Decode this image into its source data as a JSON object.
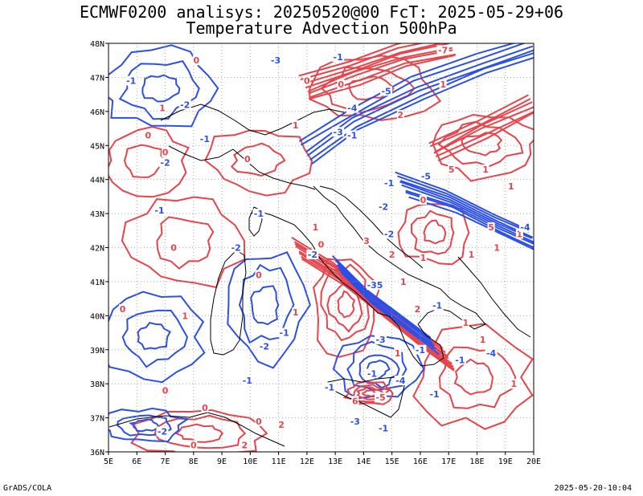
{
  "title_line1": "ECMWF0200 analisys: 20250520@00 FcT: 2025-05-29+06",
  "title_line2": "Temperature Advection 500hPa",
  "footer_left": "GrADS/COLA",
  "footer_right": "2025-05-20-10:04",
  "map": {
    "lon_labels": [
      "5E",
      "6E",
      "7E",
      "8E",
      "9E",
      "10E",
      "11E",
      "12E",
      "13E",
      "14E",
      "15E",
      "16E",
      "17E",
      "18E",
      "19E",
      "20E"
    ],
    "lat_labels": [
      "48N",
      "47N",
      "46N",
      "45N",
      "44N",
      "43N",
      "42N",
      "41N",
      "40N",
      "39N",
      "38N",
      "37N",
      "36N"
    ],
    "lon_range": [
      5,
      20
    ],
    "lat_range": [
      36,
      48
    ],
    "grid": "dotted",
    "colors": {
      "warm_advection": "#e8434a",
      "cold_advection": "#2b4fe8",
      "coastline": "#000000"
    },
    "contour_labels": [
      {
        "text": "-1",
        "lon": 5.8,
        "lat": 46.9,
        "color": "cold"
      },
      {
        "text": "0",
        "lon": 8.1,
        "lat": 47.5,
        "color": "warm"
      },
      {
        "text": "-2",
        "lon": 7.7,
        "lat": 46.2,
        "color": "cold"
      },
      {
        "text": "-3",
        "lon": 10.9,
        "lat": 47.5,
        "color": "cold"
      },
      {
        "text": "0",
        "lon": 12.0,
        "lat": 46.9,
        "color": "warm"
      },
      {
        "text": "0",
        "lon": 13.2,
        "lat": 46.8,
        "color": "warm"
      },
      {
        "text": "-1",
        "lon": 13.1,
        "lat": 47.6,
        "color": "cold"
      },
      {
        "text": "-7",
        "lon": 16.8,
        "lat": 47.8,
        "color": "warm"
      },
      {
        "text": "1",
        "lon": 16.8,
        "lat": 46.8,
        "color": "warm"
      },
      {
        "text": "-5",
        "lon": 14.8,
        "lat": 46.6,
        "color": "cold"
      },
      {
        "text": "-4",
        "lon": 13.6,
        "lat": 46.1,
        "color": "cold"
      },
      {
        "text": "-3",
        "lon": 13.1,
        "lat": 45.4,
        "color": "cold"
      },
      {
        "text": "2",
        "lon": 15.3,
        "lat": 45.9,
        "color": "warm"
      },
      {
        "text": "0",
        "lon": 6.4,
        "lat": 45.3,
        "color": "warm"
      },
      {
        "text": "0",
        "lon": 7.0,
        "lat": 44.8,
        "color": "warm"
      },
      {
        "text": "-1",
        "lon": 8.4,
        "lat": 45.2,
        "color": "cold"
      },
      {
        "text": "1",
        "lon": 6.9,
        "lat": 46.1,
        "color": "warm"
      },
      {
        "text": "-2",
        "lon": 7.0,
        "lat": 44.5,
        "color": "cold"
      },
      {
        "text": "0",
        "lon": 9.9,
        "lat": 44.6,
        "color": "warm"
      },
      {
        "text": "1",
        "lon": 11.6,
        "lat": 45.6,
        "color": "warm"
      },
      {
        "text": "-1",
        "lon": 13.6,
        "lat": 45.3,
        "color": "cold"
      },
      {
        "text": "-5",
        "lon": 16.2,
        "lat": 44.1,
        "color": "cold"
      },
      {
        "text": "1",
        "lon": 18.3,
        "lat": 44.3,
        "color": "warm"
      },
      {
        "text": "0",
        "lon": 16.1,
        "lat": 43.4,
        "color": "warm"
      },
      {
        "text": "5",
        "lon": 17.1,
        "lat": 44.3,
        "color": "warm"
      },
      {
        "text": "1",
        "lon": 19.2,
        "lat": 43.8,
        "color": "warm"
      },
      {
        "text": "-1",
        "lon": 14.9,
        "lat": 43.9,
        "color": "cold"
      },
      {
        "text": "-2",
        "lon": 14.7,
        "lat": 43.2,
        "color": "cold"
      },
      {
        "text": "-1",
        "lon": 6.8,
        "lat": 43.1,
        "color": "cold"
      },
      {
        "text": "-1",
        "lon": 10.3,
        "lat": 43.0,
        "color": "cold"
      },
      {
        "text": "1",
        "lon": 12.3,
        "lat": 42.6,
        "color": "warm"
      },
      {
        "text": "3",
        "lon": 14.1,
        "lat": 42.2,
        "color": "warm"
      },
      {
        "text": "-2",
        "lon": 14.9,
        "lat": 42.4,
        "color": "cold"
      },
      {
        "text": "2",
        "lon": 15.0,
        "lat": 41.8,
        "color": "warm"
      },
      {
        "text": "1",
        "lon": 16.1,
        "lat": 41.7,
        "color": "warm"
      },
      {
        "text": "5",
        "lon": 18.5,
        "lat": 42.6,
        "color": "warm"
      },
      {
        "text": "1",
        "lon": 19.5,
        "lat": 42.4,
        "color": "warm"
      },
      {
        "text": "-4",
        "lon": 19.7,
        "lat": 42.6,
        "color": "cold"
      },
      {
        "text": "0",
        "lon": 7.3,
        "lat": 42.0,
        "color": "warm"
      },
      {
        "text": "-2",
        "lon": 9.5,
        "lat": 42.0,
        "color": "cold"
      },
      {
        "text": "-2",
        "lon": 12.2,
        "lat": 41.8,
        "color": "cold"
      },
      {
        "text": "0",
        "lon": 12.5,
        "lat": 42.1,
        "color": "warm"
      },
      {
        "text": "1",
        "lon": 17.8,
        "lat": 41.8,
        "color": "warm"
      },
      {
        "text": "1",
        "lon": 18.7,
        "lat": 42.0,
        "color": "warm"
      },
      {
        "text": "0",
        "lon": 10.3,
        "lat": 41.2,
        "color": "warm"
      },
      {
        "text": "0",
        "lon": 5.5,
        "lat": 40.2,
        "color": "warm"
      },
      {
        "text": "1",
        "lon": 7.7,
        "lat": 40.0,
        "color": "warm"
      },
      {
        "text": "-35",
        "lon": 14.4,
        "lat": 40.9,
        "color": "cold"
      },
      {
        "text": "1",
        "lon": 15.4,
        "lat": 41.0,
        "color": "warm"
      },
      {
        "text": "2",
        "lon": 15.9,
        "lat": 40.2,
        "color": "warm"
      },
      {
        "text": "-1",
        "lon": 16.6,
        "lat": 40.3,
        "color": "cold"
      },
      {
        "text": "1",
        "lon": 11.6,
        "lat": 40.1,
        "color": "warm"
      },
      {
        "text": "-1",
        "lon": 11.2,
        "lat": 39.5,
        "color": "cold"
      },
      {
        "text": "-2",
        "lon": 10.5,
        "lat": 39.1,
        "color": "cold"
      },
      {
        "text": "-3",
        "lon": 14.6,
        "lat": 39.3,
        "color": "cold"
      },
      {
        "text": "-1",
        "lon": 16.0,
        "lat": 39.0,
        "color": "cold"
      },
      {
        "text": "-1",
        "lon": 17.4,
        "lat": 38.7,
        "color": "cold"
      },
      {
        "text": "1",
        "lon": 15.2,
        "lat": 38.9,
        "color": "warm"
      },
      {
        "text": "-4",
        "lon": 18.5,
        "lat": 38.9,
        "color": "cold"
      },
      {
        "text": "1",
        "lon": 17.6,
        "lat": 39.8,
        "color": "warm"
      },
      {
        "text": "1",
        "lon": 18.2,
        "lat": 39.3,
        "color": "warm"
      },
      {
        "text": "-1",
        "lon": 9.9,
        "lat": 38.1,
        "color": "cold"
      },
      {
        "text": "0",
        "lon": 7.0,
        "lat": 37.8,
        "color": "warm"
      },
      {
        "text": "0",
        "lon": 8.4,
        "lat": 37.3,
        "color": "warm"
      },
      {
        "text": "-1",
        "lon": 12.8,
        "lat": 37.9,
        "color": "cold"
      },
      {
        "text": "-1",
        "lon": 14.3,
        "lat": 38.3,
        "color": "cold"
      },
      {
        "text": "-4",
        "lon": 15.3,
        "lat": 38.1,
        "color": "cold"
      },
      {
        "text": "-5",
        "lon": 14.6,
        "lat": 37.6,
        "color": "warm"
      },
      {
        "text": "6",
        "lon": 13.7,
        "lat": 37.5,
        "color": "warm"
      },
      {
        "text": "-1",
        "lon": 16.5,
        "lat": 37.7,
        "color": "cold"
      },
      {
        "text": "1",
        "lon": 19.3,
        "lat": 38.0,
        "color": "warm"
      },
      {
        "text": "0",
        "lon": 10.3,
        "lat": 36.9,
        "color": "warm"
      },
      {
        "text": "2",
        "lon": 11.1,
        "lat": 36.8,
        "color": "warm"
      },
      {
        "text": "-2",
        "lon": 6.9,
        "lat": 36.6,
        "color": "cold"
      },
      {
        "text": "-3",
        "lon": 13.7,
        "lat": 36.9,
        "color": "cold"
      },
      {
        "text": "-1",
        "lon": 14.7,
        "lat": 36.7,
        "color": "cold"
      },
      {
        "text": "0",
        "lon": 8.0,
        "lat": 36.2,
        "color": "warm"
      },
      {
        "text": "2",
        "lon": 9.8,
        "lat": 36.2,
        "color": "warm"
      }
    ]
  }
}
